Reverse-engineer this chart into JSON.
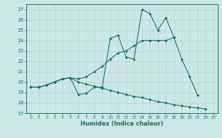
{
  "xlabel": "Humidex (Indice chaleur)",
  "bg_color": "#cce8e5",
  "grid_color": "#aad4cf",
  "line_color": "#1a6b6b",
  "xlim": [
    -0.5,
    23.5
  ],
  "ylim": [
    17,
    27.5
  ],
  "yticks": [
    17,
    18,
    19,
    20,
    21,
    22,
    23,
    24,
    25,
    26,
    27
  ],
  "xticks": [
    0,
    1,
    2,
    3,
    4,
    5,
    6,
    7,
    8,
    9,
    10,
    11,
    12,
    13,
    14,
    15,
    16,
    17,
    18,
    19,
    20,
    21,
    22,
    23
  ],
  "series": [
    {
      "x": [
        0,
        1,
        2,
        3,
        4,
        5,
        6,
        7,
        8,
        9,
        10,
        11,
        12,
        13,
        14,
        15,
        16,
        17,
        18,
        19,
        20,
        21
      ],
      "y": [
        19.5,
        19.5,
        19.7,
        20.0,
        20.3,
        20.4,
        18.8,
        18.9,
        19.5,
        19.5,
        24.2,
        24.5,
        22.4,
        22.2,
        27.0,
        26.6,
        25.0,
        26.2,
        24.3,
        22.2,
        20.5,
        18.7
      ]
    },
    {
      "x": [
        0,
        1,
        2,
        3,
        4,
        5,
        6,
        7,
        8,
        9,
        10,
        11,
        12,
        13,
        14,
        15,
        16,
        17,
        18
      ],
      "y": [
        19.5,
        19.5,
        19.7,
        20.0,
        20.3,
        20.4,
        20.3,
        20.5,
        21.0,
        21.5,
        22.2,
        22.8,
        23.0,
        23.5,
        24.0,
        24.0,
        24.0,
        24.0,
        24.3
      ]
    },
    {
      "x": [
        0,
        1,
        2,
        3,
        4,
        5,
        6,
        7,
        8,
        9,
        10,
        11,
        12,
        13,
        14,
        15,
        16,
        17,
        18,
        19,
        20,
        21,
        22
      ],
      "y": [
        19.5,
        19.5,
        19.7,
        20.0,
        20.3,
        20.4,
        20.0,
        19.8,
        19.6,
        19.4,
        19.2,
        19.0,
        18.8,
        18.6,
        18.5,
        18.3,
        18.1,
        18.0,
        17.8,
        17.7,
        17.6,
        17.5,
        17.4
      ]
    }
  ]
}
